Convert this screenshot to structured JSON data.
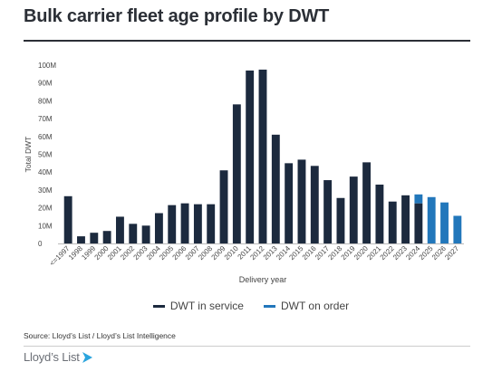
{
  "title": "Bulk carrier fleet age profile by DWT",
  "source": "Source: Lloyd’s List / Lloyd’s List Intelligence",
  "logo_text": "Lloyd’s List",
  "colors": {
    "in_service": "#1c2a3e",
    "on_order": "#2277bb",
    "axis_text": "#444444",
    "grid": "#e6e6e6",
    "title": "#2b2f36"
  },
  "legend": [
    {
      "label": "DWT in service",
      "color": "#1c2a3e"
    },
    {
      "label": "DWT on order",
      "color": "#2277bb"
    }
  ],
  "chart_data": {
    "type": "bar",
    "stacked": true,
    "title": "Bulk carrier fleet age profile by DWT",
    "xlabel": "Delivery year",
    "ylabel": "Total DWT",
    "ylim": [
      0,
      100
    ],
    "y_unit": "M",
    "yticks": [
      "0",
      "10M",
      "20M",
      "30M",
      "40M",
      "50M",
      "60M",
      "70M",
      "80M",
      "90M",
      "100M"
    ],
    "grid": false,
    "legend_position": "bottom",
    "categories": [
      "<=1997",
      "1998",
      "1999",
      "2000",
      "2001",
      "2002",
      "2003",
      "2004",
      "2005",
      "2006",
      "2007",
      "2008",
      "2009",
      "2010",
      "2011",
      "2012",
      "2013",
      "2014",
      "2015",
      "2016",
      "2017",
      "2018",
      "2019",
      "2020",
      "2021",
      "2022",
      "2023",
      "2024",
      "2025",
      "2026",
      "2027"
    ],
    "series": [
      {
        "name": "DWT in service",
        "color": "#1c2a3e",
        "values": [
          26.5,
          4,
          6,
          7,
          15,
          11,
          10,
          17,
          21.5,
          22.5,
          22,
          22,
          41,
          78,
          97,
          97.5,
          61,
          45,
          47,
          43.5,
          35.5,
          25.5,
          37.5,
          45.5,
          33,
          23.5,
          27,
          22.5,
          0,
          0,
          0
        ]
      },
      {
        "name": "DWT on order",
        "color": "#2277bb",
        "values": [
          0,
          0,
          0,
          0,
          0,
          0,
          0,
          0,
          0,
          0,
          0,
          0,
          0,
          0,
          0,
          0,
          0,
          0,
          0,
          0,
          0,
          0,
          0,
          0,
          0,
          0,
          0,
          5,
          26,
          23,
          15.5
        ]
      }
    ]
  }
}
